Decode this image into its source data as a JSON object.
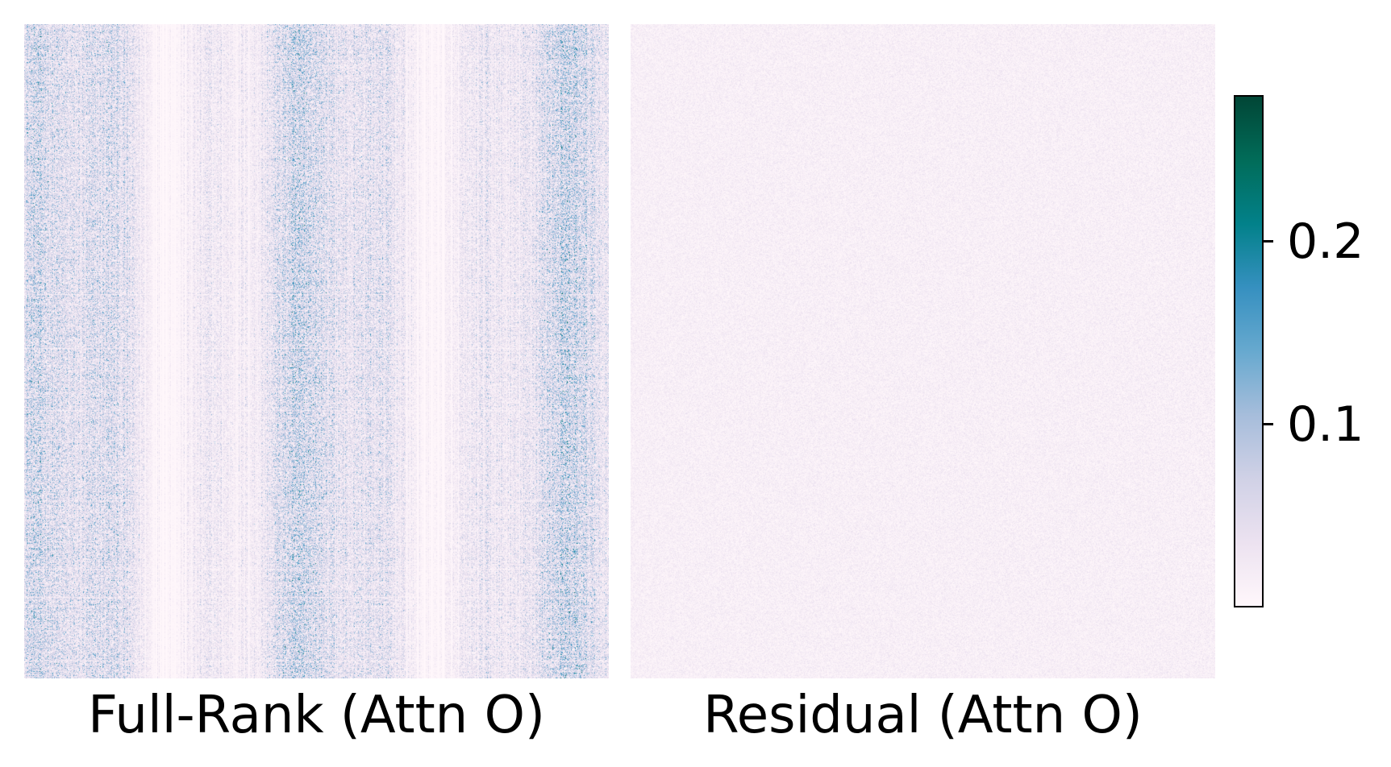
{
  "chart_data": {
    "type": "heatmap",
    "colormap": "PuBuGn",
    "colorbar": {
      "min": 0.0,
      "max": 0.28,
      "ticks": [
        {
          "value": 0.2,
          "label": "0.2"
        },
        {
          "value": 0.1,
          "label": "0.1"
        }
      ]
    },
    "panels": [
      {
        "label": "Full-Rank (Attn O)",
        "typical_value": 0.085,
        "pattern": "vertical-column-bands"
      },
      {
        "label": "Residual (Attn O)",
        "typical_value": 0.025,
        "pattern": "uniform-noise"
      }
    ],
    "colors": [
      "#fff7fb",
      "#ece2f0",
      "#d0d1e6",
      "#a6bddb",
      "#67a9cf",
      "#3690c0",
      "#02818a",
      "#016c59",
      "#014636"
    ]
  }
}
